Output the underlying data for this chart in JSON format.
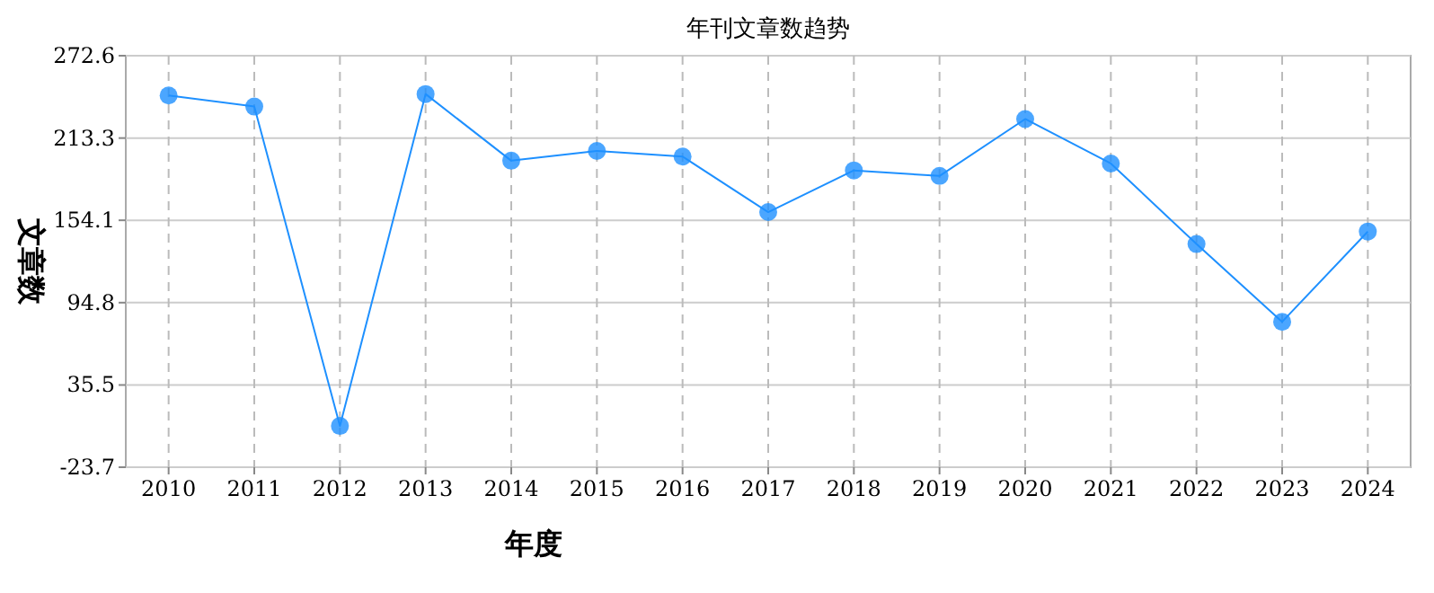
{
  "chart_data": {
    "type": "line",
    "title": "年刊文章数趋势",
    "xlabel": "年度",
    "ylabel": "文章数",
    "categories": [
      "2010",
      "2011",
      "2012",
      "2013",
      "2014",
      "2015",
      "2016",
      "2017",
      "2018",
      "2019",
      "2020",
      "2021",
      "2022",
      "2023",
      "2024"
    ],
    "series": [
      {
        "color": "#1e90ff",
        "values": [
          244,
          236,
          6,
          245,
          197,
          204,
          200,
          160,
          190,
          186,
          227,
          195,
          137,
          81,
          146
        ]
      }
    ],
    "ylim": [
      -23.7,
      272.6
    ],
    "yticks": [
      -23.7,
      35.5,
      94.8,
      154.1,
      213.3,
      272.6
    ],
    "grid": true,
    "marker": "circle"
  }
}
